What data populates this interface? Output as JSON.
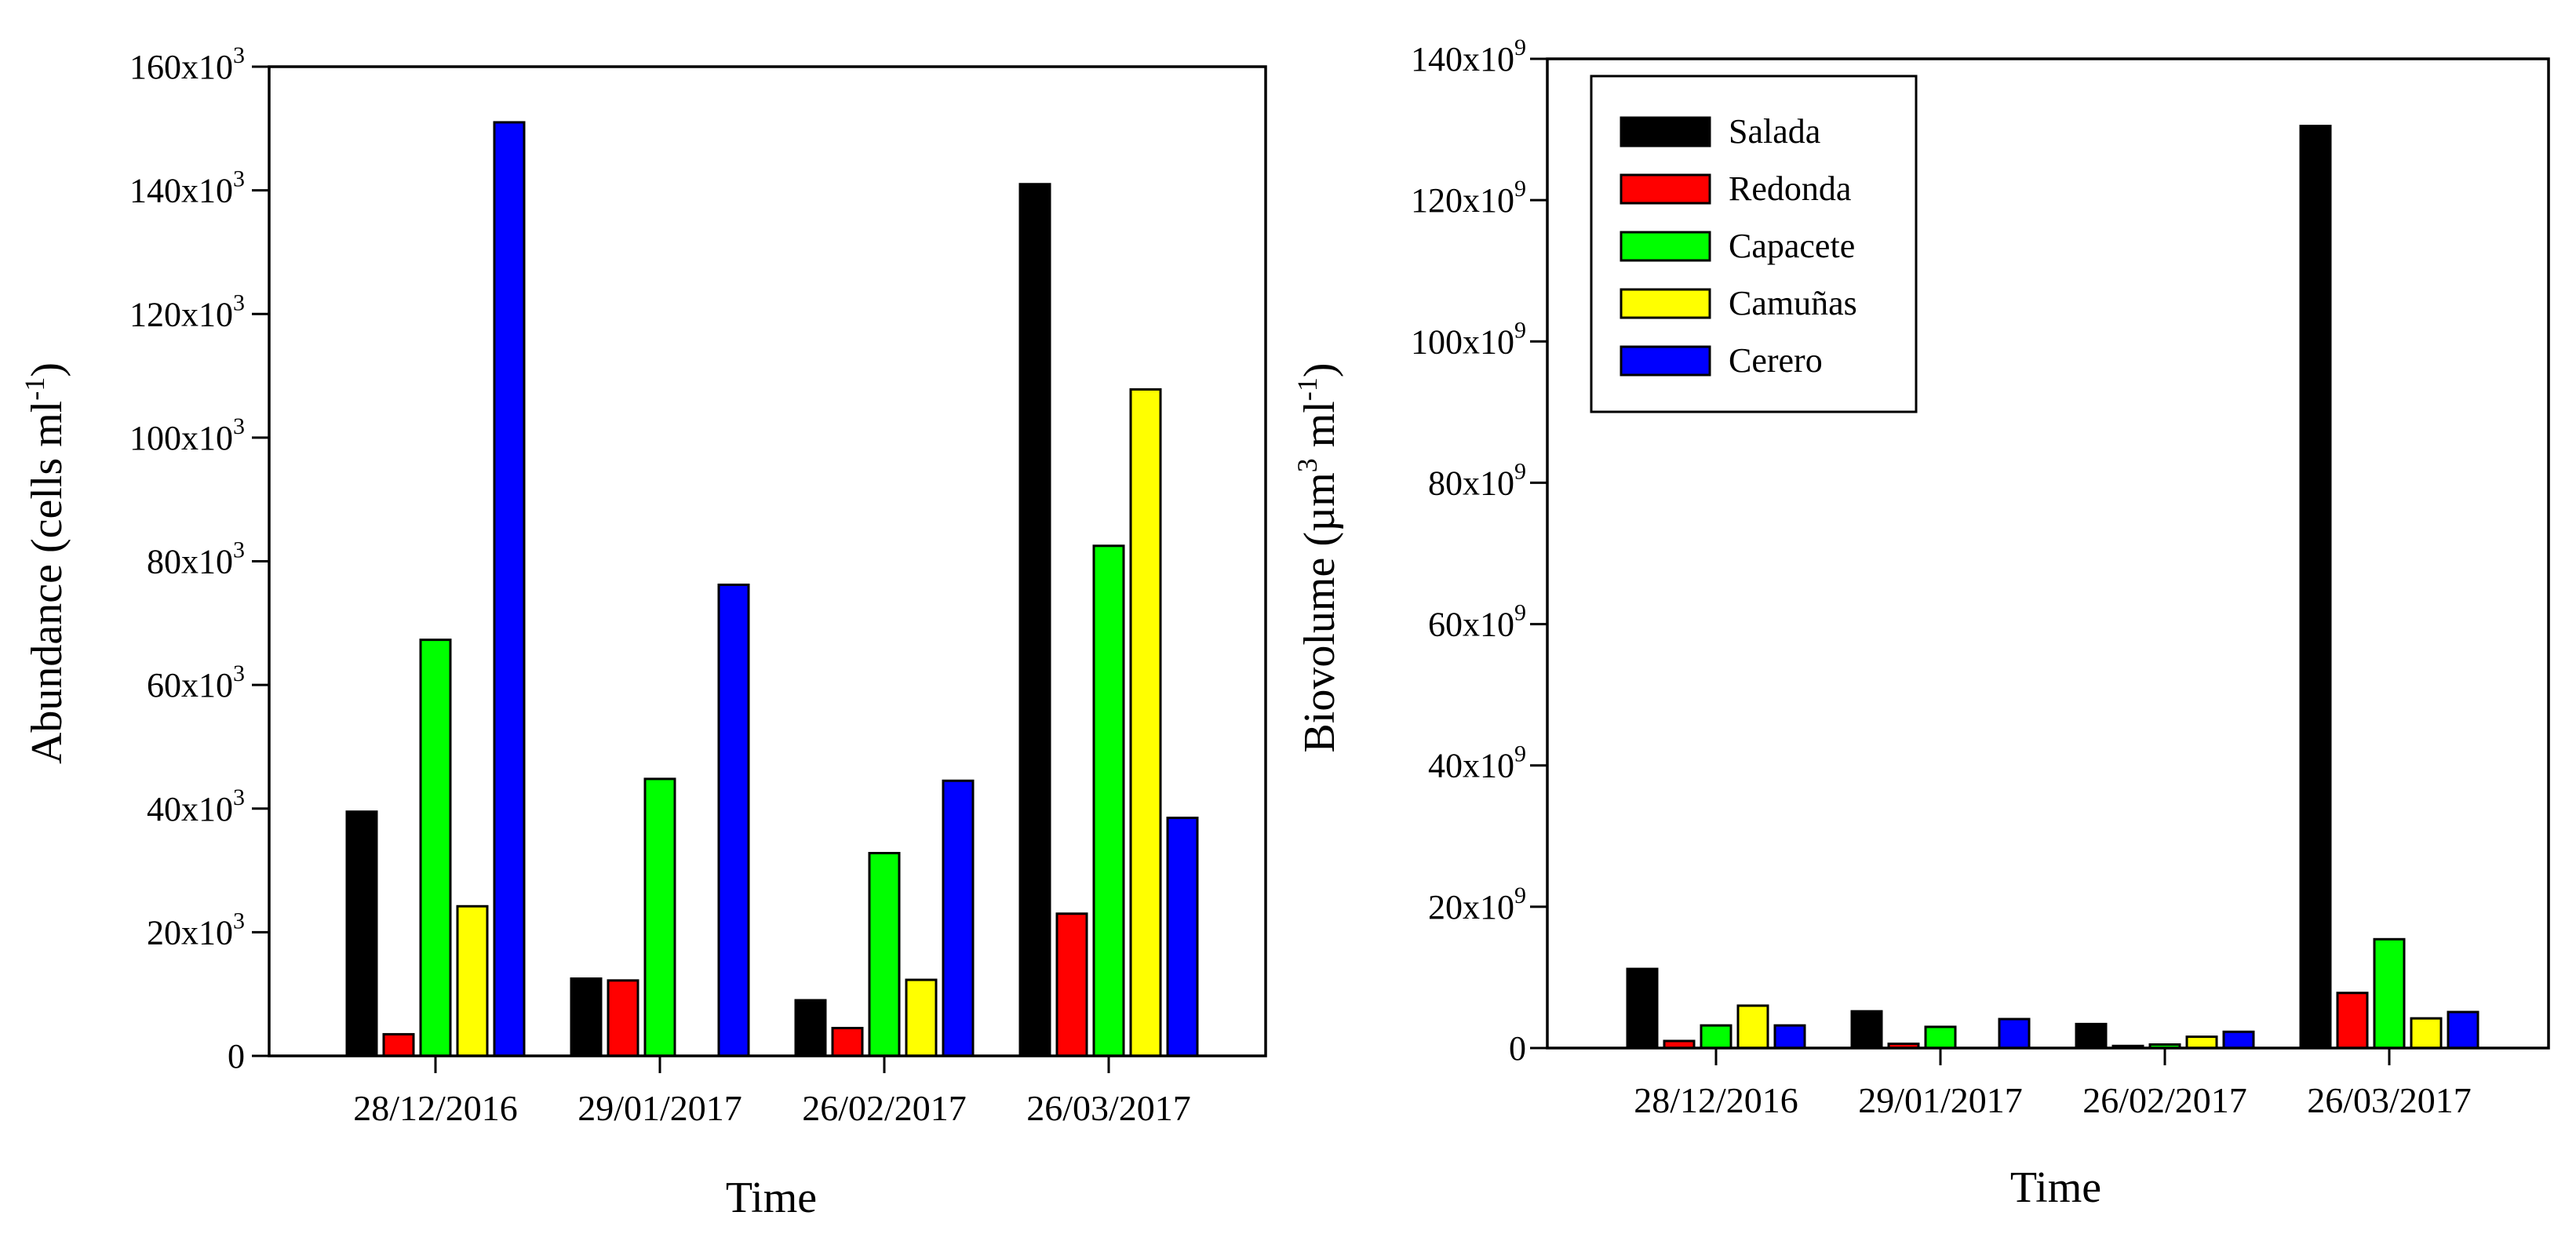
{
  "colors": {
    "Salada": "#000000",
    "Redonda": "#ff0000",
    "Capacete": "#00ff00",
    "Camuñas": "#ffff00",
    "Cerero": "#0000ff"
  },
  "chart_data": [
    {
      "type": "bar",
      "title": "",
      "categories": [
        "28/12/2016",
        "29/01/2017",
        "26/02/2017",
        "26/03/2017"
      ],
      "xlabel": "Time",
      "ylabel_parts": {
        "main": "Abundance (cells ml",
        "sup": "-1",
        "close": ")"
      },
      "ylim": [
        0,
        160000
      ],
      "y_ticks": [
        {
          "value": 0,
          "base": "0",
          "exp": ""
        },
        {
          "value": 20000,
          "base": "20x10",
          "exp": "3"
        },
        {
          "value": 40000,
          "base": "40x10",
          "exp": "3"
        },
        {
          "value": 60000,
          "base": "60x10",
          "exp": "3"
        },
        {
          "value": 80000,
          "base": "80x10",
          "exp": "3"
        },
        {
          "value": 100000,
          "base": "100x10",
          "exp": "3"
        },
        {
          "value": 120000,
          "base": "120x10",
          "exp": "3"
        },
        {
          "value": 140000,
          "base": "140x10",
          "exp": "3"
        },
        {
          "value": 160000,
          "base": "160x10",
          "exp": "3"
        }
      ],
      "series": [
        {
          "name": "Salada",
          "values": [
            39500,
            12500,
            9000,
            141000
          ]
        },
        {
          "name": "Redonda",
          "values": [
            3500,
            12200,
            4500,
            23000
          ]
        },
        {
          "name": "Capacete",
          "values": [
            67300,
            44800,
            32800,
            82500
          ]
        },
        {
          "name": "Camuñas",
          "values": [
            24200,
            0,
            12300,
            107800
          ]
        },
        {
          "name": "Cerero",
          "values": [
            151000,
            76200,
            44500,
            38500
          ]
        }
      ],
      "legend": null
    },
    {
      "type": "bar",
      "title": "",
      "categories": [
        "28/12/2016",
        "29/01/2017",
        "26/02/2017",
        "26/03/2017"
      ],
      "xlabel": "Time",
      "ylabel_parts": {
        "main": "Biovolume (µm",
        "sup": "3",
        "mid": " ml",
        "sup2": "-1",
        "close": ")"
      },
      "ylim": [
        0,
        140000000000
      ],
      "y_ticks": [
        {
          "value": 0,
          "base": "0",
          "exp": ""
        },
        {
          "value": 20000000000,
          "base": "20x10",
          "exp": "9"
        },
        {
          "value": 40000000000,
          "base": "40x10",
          "exp": "9"
        },
        {
          "value": 60000000000,
          "base": "60x10",
          "exp": "9"
        },
        {
          "value": 80000000000,
          "base": "80x10",
          "exp": "9"
        },
        {
          "value": 100000000000,
          "base": "100x10",
          "exp": "9"
        },
        {
          "value": 120000000000,
          "base": "120x10",
          "exp": "9"
        },
        {
          "value": 140000000000,
          "base": "140x10",
          "exp": "9"
        }
      ],
      "series": [
        {
          "name": "Salada",
          "values": [
            11200000000,
            5200000000,
            3400000000,
            130500000000
          ]
        },
        {
          "name": "Redonda",
          "values": [
            1000000000,
            600000000,
            300000000,
            7800000000
          ]
        },
        {
          "name": "Capacete",
          "values": [
            3200000000,
            3000000000,
            500000000,
            15400000000
          ]
        },
        {
          "name": "Camuñas",
          "values": [
            6000000000,
            0,
            1600000000,
            4200000000
          ]
        },
        {
          "name": "Cerero",
          "values": [
            3200000000,
            4100000000,
            2300000000,
            5100000000
          ]
        }
      ],
      "legend": {
        "position": "top-left",
        "entries": [
          "Salada",
          "Redonda",
          "Capacete",
          "Camuñas",
          "Cerero"
        ]
      }
    }
  ]
}
